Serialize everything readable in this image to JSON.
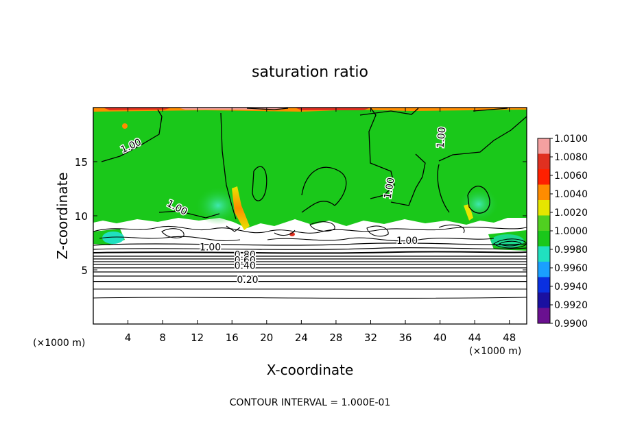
{
  "chart_data": {
    "type": "heatmap",
    "title": "saturation ratio",
    "xlabel": "X-coordinate",
    "ylabel": "Z-coordinate",
    "x_unit": "(×1000 m)",
    "z_unit": "(×1000 m)",
    "x_ticks": [
      4,
      8,
      12,
      16,
      20,
      24,
      28,
      32,
      36,
      40,
      44,
      48
    ],
    "y_ticks": [
      5,
      10,
      15
    ],
    "xlim": [
      0,
      50
    ],
    "ylim": [
      0,
      20
    ],
    "colorbar": {
      "values": [
        "1.0100",
        "1.0080",
        "1.0060",
        "1.0040",
        "1.0020",
        "1.0000",
        "0.9980",
        "0.9960",
        "0.9940",
        "0.9920",
        "0.9900"
      ],
      "colors": [
        "#f4a0a0",
        "#e03020",
        "#ff2000",
        "#ff8c00",
        "#e6e600",
        "#50d020",
        "#1ac81a",
        "#20e0c0",
        "#1aa0ff",
        "#0a30e0",
        "#1a10a0",
        "#6a1090"
      ]
    },
    "contour_labels": [
      {
        "text": "1.00",
        "x": 4.5,
        "z": 16.2,
        "angle": -25
      },
      {
        "text": "1.00",
        "x": 40.5,
        "z": 17.2,
        "angle": -85
      },
      {
        "text": "1.00",
        "x": 34.5,
        "z": 12.5,
        "angle": -80
      },
      {
        "text": "1.00",
        "x": 9.5,
        "z": 10.5,
        "angle": 28
      },
      {
        "text": "1.00",
        "x": 13.5,
        "z": 6.8,
        "angle": 0
      },
      {
        "text": "1.00",
        "x": 36.2,
        "z": 7.4,
        "angle": 0
      },
      {
        "text": "0.80",
        "x": 17.5,
        "z": 6.1,
        "angle": 0
      },
      {
        "text": "0.60",
        "x": 17.5,
        "z": 5.6,
        "angle": 0
      },
      {
        "text": "0.40",
        "x": 17.5,
        "z": 5.1,
        "angle": 0
      },
      {
        "text": "0.20",
        "x": 17.8,
        "z": 3.8,
        "angle": 0
      }
    ],
    "contour_interval_label": "CONTOUR INTERVAL = 1.000E-01"
  }
}
